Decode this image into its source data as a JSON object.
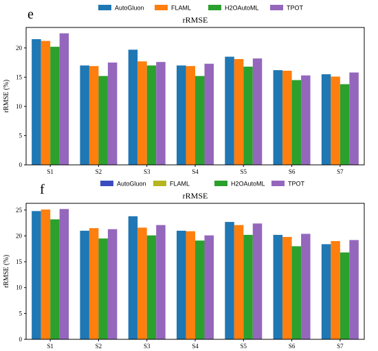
{
  "chart_data": [
    {
      "panel": "e",
      "type": "bar",
      "title": "rRMSE",
      "ylabel": "rRMSE (%)",
      "xlabel": "",
      "ylim": [
        0,
        23.5
      ],
      "yticks": [
        0,
        5,
        10,
        15,
        20
      ],
      "grid": false,
      "legend": "top",
      "categories": [
        "S1",
        "S2",
        "S3",
        "S4",
        "S5",
        "S6",
        "S7"
      ],
      "series": [
        {
          "name": "AutoGluon",
          "color": "#1f77b4",
          "values": [
            21.5,
            17.0,
            19.7,
            17.0,
            18.5,
            16.2,
            15.5
          ]
        },
        {
          "name": "FLAML",
          "color": "#ff7f0e",
          "values": [
            21.2,
            16.9,
            17.7,
            16.9,
            18.1,
            16.1,
            15.1
          ]
        },
        {
          "name": "H2OAutoML",
          "color": "#2ca02c",
          "values": [
            20.2,
            15.2,
            17.0,
            15.2,
            16.8,
            14.5,
            13.8
          ]
        },
        {
          "name": "TPOT",
          "color": "#9467bd",
          "values": [
            22.5,
            17.5,
            17.6,
            17.3,
            18.2,
            15.3,
            15.8
          ]
        }
      ]
    },
    {
      "panel": "f",
      "type": "bar",
      "title": "rRMSE",
      "ylabel": "rRMSE (%)",
      "xlabel": "",
      "ylim": [
        0,
        26.3
      ],
      "yticks": [
        0,
        5,
        10,
        15,
        20,
        25
      ],
      "grid": false,
      "legend": "top",
      "categories": [
        "S1",
        "S2",
        "S3",
        "S4",
        "S5",
        "S6",
        "S7"
      ],
      "series": [
        {
          "name": "AutoGluon",
          "color": "#1f77b4",
          "legend_color": "#3b4cc0",
          "values": [
            24.8,
            21.0,
            23.8,
            21.0,
            22.7,
            20.2,
            18.4
          ]
        },
        {
          "name": "FLAML",
          "color": "#ff7f0e",
          "legend_color": "#b5b51e",
          "values": [
            25.1,
            21.5,
            21.6,
            20.9,
            22.1,
            19.8,
            19.0
          ]
        },
        {
          "name": "H2OAutoML",
          "color": "#2ca02c",
          "legend_color": "#2ca02c",
          "values": [
            23.2,
            19.5,
            20.1,
            19.1,
            20.2,
            18.0,
            16.8
          ]
        },
        {
          "name": "TPOT",
          "color": "#9467bd",
          "legend_color": "#9467bd",
          "values": [
            25.2,
            21.3,
            22.1,
            20.1,
            22.4,
            20.4,
            19.2
          ]
        }
      ]
    }
  ]
}
